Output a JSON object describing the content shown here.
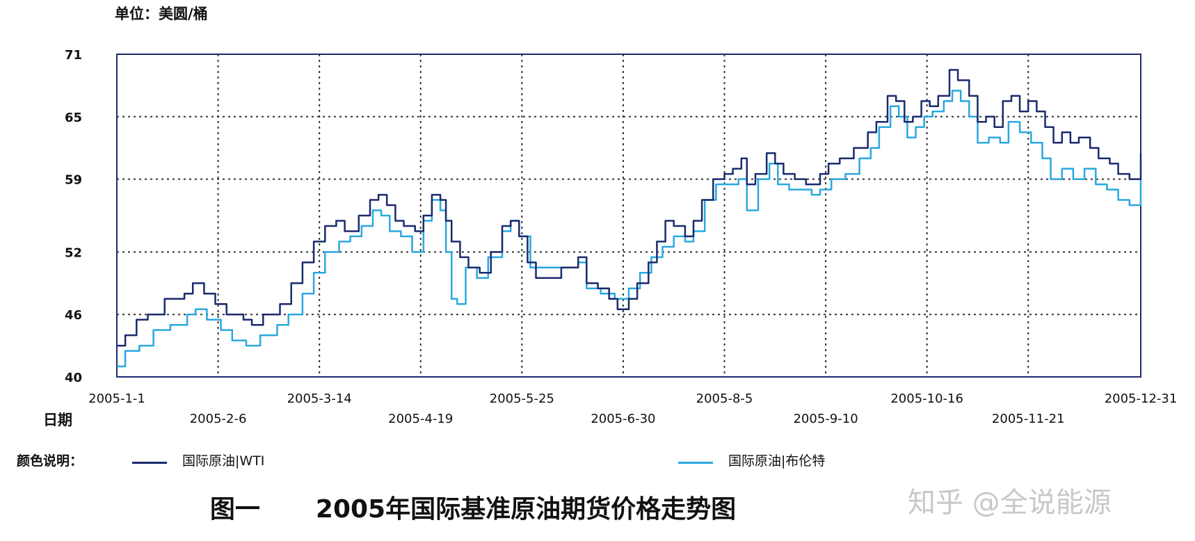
{
  "unit_label": "单位：美圆/桶",
  "axis_name_x": "日期",
  "legend_title": "颜色说明：",
  "caption": {
    "figure_no": "图一",
    "title": "2005年国际基准原油期货价格走势图"
  },
  "watermark": "知乎 @全说能源",
  "colors": {
    "wti": "#1a2a6c",
    "brent": "#29a8e0",
    "grid": "#333333",
    "frame": "#1c2b6e"
  },
  "chart_data": {
    "type": "line",
    "title": "",
    "xlabel": "日期",
    "ylabel": "单位：美圆/桶",
    "ylim": [
      40,
      71
    ],
    "xlim": [
      "2005-01-01",
      "2005-12-31"
    ],
    "grid": true,
    "yticks": [
      40,
      46,
      52,
      59,
      65,
      71
    ],
    "ytick_labels": [
      "40",
      "46",
      "52",
      "59",
      "65",
      "71"
    ],
    "xticks": [
      {
        "date": "2005-01-01",
        "label": "2005-1-1",
        "row": 1
      },
      {
        "date": "2005-02-06",
        "label": "2005-2-6",
        "row": 2
      },
      {
        "date": "2005-03-14",
        "label": "2005-3-14",
        "row": 1
      },
      {
        "date": "2005-04-19",
        "label": "2005-4-19",
        "row": 2
      },
      {
        "date": "2005-05-25",
        "label": "2005-5-25",
        "row": 1
      },
      {
        "date": "2005-06-30",
        "label": "2005-6-30",
        "row": 2
      },
      {
        "date": "2005-08-05",
        "label": "2005-8-5",
        "row": 1
      },
      {
        "date": "2005-09-10",
        "label": "2005-9-10",
        "row": 2
      },
      {
        "date": "2005-10-16",
        "label": "2005-10-16",
        "row": 1
      },
      {
        "date": "2005-11-21",
        "label": "2005-11-21",
        "row": 2
      },
      {
        "date": "2005-12-31",
        "label": "2005-12-31",
        "row": 1
      }
    ],
    "legend_position": "bottom",
    "series": [
      {
        "name": "国际原油|WTI",
        "color": "#1a2a6c",
        "points": [
          [
            "2005-01-01",
            43.0
          ],
          [
            "2005-01-04",
            44.0
          ],
          [
            "2005-01-08",
            45.5
          ],
          [
            "2005-01-12",
            46.0
          ],
          [
            "2005-01-18",
            47.5
          ],
          [
            "2005-01-25",
            48.0
          ],
          [
            "2005-01-28",
            49.0
          ],
          [
            "2005-02-01",
            48.0
          ],
          [
            "2005-02-05",
            47.0
          ],
          [
            "2005-02-09",
            46.0
          ],
          [
            "2005-02-15",
            45.5
          ],
          [
            "2005-02-18",
            45.0
          ],
          [
            "2005-02-22",
            46.0
          ],
          [
            "2005-02-28",
            47.0
          ],
          [
            "2005-03-04",
            49.0
          ],
          [
            "2005-03-08",
            51.0
          ],
          [
            "2005-03-12",
            53.0
          ],
          [
            "2005-03-16",
            54.5
          ],
          [
            "2005-03-20",
            55.0
          ],
          [
            "2005-03-23",
            54.0
          ],
          [
            "2005-03-28",
            55.5
          ],
          [
            "2005-04-01",
            57.0
          ],
          [
            "2005-04-04",
            57.5
          ],
          [
            "2005-04-07",
            56.5
          ],
          [
            "2005-04-10",
            55.0
          ],
          [
            "2005-04-13",
            54.5
          ],
          [
            "2005-04-17",
            54.0
          ],
          [
            "2005-04-20",
            55.5
          ],
          [
            "2005-04-23",
            57.5
          ],
          [
            "2005-04-26",
            57.0
          ],
          [
            "2005-04-28",
            55.0
          ],
          [
            "2005-04-30",
            53.0
          ],
          [
            "2005-05-03",
            51.5
          ],
          [
            "2005-05-06",
            50.5
          ],
          [
            "2005-05-10",
            50.0
          ],
          [
            "2005-05-14",
            52.0
          ],
          [
            "2005-05-18",
            54.5
          ],
          [
            "2005-05-21",
            55.0
          ],
          [
            "2005-05-24",
            53.5
          ],
          [
            "2005-05-27",
            51.0
          ],
          [
            "2005-05-30",
            49.5
          ],
          [
            "2005-06-04",
            49.5
          ],
          [
            "2005-06-08",
            50.5
          ],
          [
            "2005-06-14",
            51.5
          ],
          [
            "2005-06-17",
            49.0
          ],
          [
            "2005-06-21",
            48.5
          ],
          [
            "2005-06-25",
            47.5
          ],
          [
            "2005-06-28",
            46.5
          ],
          [
            "2005-07-02",
            47.5
          ],
          [
            "2005-07-05",
            49.0
          ],
          [
            "2005-07-09",
            51.0
          ],
          [
            "2005-07-12",
            53.0
          ],
          [
            "2005-07-15",
            55.0
          ],
          [
            "2005-07-18",
            54.5
          ],
          [
            "2005-07-22",
            53.5
          ],
          [
            "2005-07-25",
            55.0
          ],
          [
            "2005-07-28",
            57.0
          ],
          [
            "2005-08-01",
            59.0
          ],
          [
            "2005-08-05",
            59.5
          ],
          [
            "2005-08-08",
            60.0
          ],
          [
            "2005-08-11",
            61.0
          ],
          [
            "2005-08-13",
            58.5
          ],
          [
            "2005-08-16",
            59.5
          ],
          [
            "2005-08-20",
            61.5
          ],
          [
            "2005-08-23",
            60.5
          ],
          [
            "2005-08-26",
            59.5
          ],
          [
            "2005-08-30",
            59.0
          ],
          [
            "2005-09-03",
            58.5
          ],
          [
            "2005-09-08",
            59.5
          ],
          [
            "2005-09-11",
            60.5
          ],
          [
            "2005-09-15",
            61.0
          ],
          [
            "2005-09-20",
            62.0
          ],
          [
            "2005-09-25",
            63.5
          ],
          [
            "2005-09-28",
            64.5
          ],
          [
            "2005-10-02",
            67.0
          ],
          [
            "2005-10-05",
            66.5
          ],
          [
            "2005-10-08",
            64.5
          ],
          [
            "2005-10-11",
            65.0
          ],
          [
            "2005-10-14",
            66.5
          ],
          [
            "2005-10-17",
            66.0
          ],
          [
            "2005-10-20",
            67.0
          ],
          [
            "2005-10-24",
            69.5
          ],
          [
            "2005-10-27",
            68.5
          ],
          [
            "2005-10-31",
            67.0
          ],
          [
            "2005-11-03",
            64.5
          ],
          [
            "2005-11-06",
            65.0
          ],
          [
            "2005-11-09",
            64.0
          ],
          [
            "2005-11-12",
            66.5
          ],
          [
            "2005-11-15",
            67.0
          ],
          [
            "2005-11-18",
            65.5
          ],
          [
            "2005-11-21",
            66.5
          ],
          [
            "2005-11-24",
            65.5
          ],
          [
            "2005-11-27",
            64.0
          ],
          [
            "2005-11-30",
            62.5
          ],
          [
            "2005-12-03",
            63.5
          ],
          [
            "2005-12-06",
            62.5
          ],
          [
            "2005-12-09",
            63.0
          ],
          [
            "2005-12-13",
            62.0
          ],
          [
            "2005-12-16",
            61.0
          ],
          [
            "2005-12-20",
            60.5
          ],
          [
            "2005-12-23",
            59.5
          ],
          [
            "2005-12-27",
            59.0
          ],
          [
            "2005-12-31",
            61.5
          ]
        ]
      },
      {
        "name": "国际原油|布伦特",
        "color": "#29a8e0",
        "points": [
          [
            "2005-01-01",
            41.0
          ],
          [
            "2005-01-04",
            42.5
          ],
          [
            "2005-01-09",
            43.0
          ],
          [
            "2005-01-14",
            44.5
          ],
          [
            "2005-01-20",
            45.0
          ],
          [
            "2005-01-26",
            46.0
          ],
          [
            "2005-01-29",
            46.5
          ],
          [
            "2005-02-02",
            45.5
          ],
          [
            "2005-02-07",
            44.5
          ],
          [
            "2005-02-11",
            43.5
          ],
          [
            "2005-02-16",
            43.0
          ],
          [
            "2005-02-21",
            44.0
          ],
          [
            "2005-02-27",
            45.0
          ],
          [
            "2005-03-03",
            46.0
          ],
          [
            "2005-03-08",
            48.0
          ],
          [
            "2005-03-12",
            50.0
          ],
          [
            "2005-03-16",
            52.0
          ],
          [
            "2005-03-21",
            53.0
          ],
          [
            "2005-03-25",
            53.5
          ],
          [
            "2005-03-29",
            54.5
          ],
          [
            "2005-04-02",
            56.0
          ],
          [
            "2005-04-05",
            55.5
          ],
          [
            "2005-04-08",
            54.0
          ],
          [
            "2005-04-12",
            53.5
          ],
          [
            "2005-04-16",
            52.0
          ],
          [
            "2005-04-20",
            55.0
          ],
          [
            "2005-04-23",
            57.0
          ],
          [
            "2005-04-26",
            56.0
          ],
          [
            "2005-04-28",
            52.0
          ],
          [
            "2005-04-30",
            47.5
          ],
          [
            "2005-05-02",
            47.0
          ],
          [
            "2005-05-05",
            50.5
          ],
          [
            "2005-05-09",
            49.5
          ],
          [
            "2005-05-13",
            51.5
          ],
          [
            "2005-05-18",
            54.0
          ],
          [
            "2005-05-21",
            55.0
          ],
          [
            "2005-05-24",
            53.5
          ],
          [
            "2005-05-28",
            50.5
          ],
          [
            "2005-06-02",
            50.5
          ],
          [
            "2005-06-08",
            50.5
          ],
          [
            "2005-06-14",
            51.0
          ],
          [
            "2005-06-17",
            48.5
          ],
          [
            "2005-06-22",
            48.0
          ],
          [
            "2005-06-27",
            47.5
          ],
          [
            "2005-07-02",
            48.5
          ],
          [
            "2005-07-06",
            50.0
          ],
          [
            "2005-07-10",
            51.5
          ],
          [
            "2005-07-14",
            52.5
          ],
          [
            "2005-07-18",
            53.5
          ],
          [
            "2005-07-22",
            53.0
          ],
          [
            "2005-07-25",
            54.0
          ],
          [
            "2005-07-29",
            57.0
          ],
          [
            "2005-08-02",
            58.5
          ],
          [
            "2005-08-06",
            58.5
          ],
          [
            "2005-08-10",
            59.0
          ],
          [
            "2005-08-13",
            56.0
          ],
          [
            "2005-08-17",
            59.0
          ],
          [
            "2005-08-21",
            60.5
          ],
          [
            "2005-08-24",
            58.5
          ],
          [
            "2005-08-28",
            58.0
          ],
          [
            "2005-09-01",
            58.0
          ],
          [
            "2005-09-05",
            57.5
          ],
          [
            "2005-09-08",
            58.0
          ],
          [
            "2005-09-12",
            59.0
          ],
          [
            "2005-09-17",
            59.5
          ],
          [
            "2005-09-22",
            61.0
          ],
          [
            "2005-09-26",
            62.0
          ],
          [
            "2005-09-29",
            64.0
          ],
          [
            "2005-10-03",
            66.0
          ],
          [
            "2005-10-06",
            65.0
          ],
          [
            "2005-10-09",
            63.0
          ],
          [
            "2005-10-12",
            64.0
          ],
          [
            "2005-10-15",
            65.0
          ],
          [
            "2005-10-18",
            65.5
          ],
          [
            "2005-10-22",
            66.5
          ],
          [
            "2005-10-25",
            67.5
          ],
          [
            "2005-10-28",
            66.5
          ],
          [
            "2005-10-31",
            65.0
          ],
          [
            "2005-11-03",
            62.5
          ],
          [
            "2005-11-07",
            63.0
          ],
          [
            "2005-11-11",
            62.5
          ],
          [
            "2005-11-14",
            64.5
          ],
          [
            "2005-11-18",
            63.5
          ],
          [
            "2005-11-22",
            62.5
          ],
          [
            "2005-11-26",
            61.0
          ],
          [
            "2005-11-29",
            59.0
          ],
          [
            "2005-12-03",
            60.0
          ],
          [
            "2005-12-07",
            59.0
          ],
          [
            "2005-12-11",
            60.0
          ],
          [
            "2005-12-15",
            58.5
          ],
          [
            "2005-12-19",
            58.0
          ],
          [
            "2005-12-23",
            57.0
          ],
          [
            "2005-12-27",
            56.5
          ],
          [
            "2005-12-31",
            59.0
          ]
        ]
      }
    ]
  }
}
